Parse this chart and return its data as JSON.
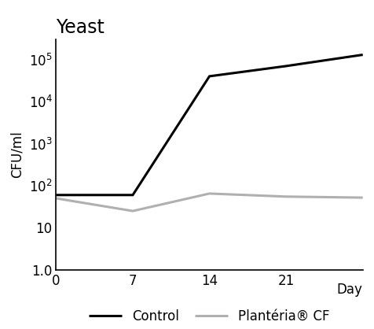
{
  "title": "Yeast",
  "xlabel": "Day",
  "ylabel": "CFU/ml",
  "x_values": [
    0,
    7,
    14,
    21,
    28
  ],
  "control_y": [
    60,
    60,
    40000,
    70000,
    130000
  ],
  "planteria_y": [
    50,
    25,
    65,
    55,
    52
  ],
  "control_color": "#000000",
  "planteria_color": "#b0b0b0",
  "control_label": "Control",
  "planteria_label": "Plantéria® CF",
  "ylim": [
    1.0,
    300000
  ],
  "xlim": [
    0,
    28
  ],
  "x_ticks": [
    0,
    7,
    14,
    21
  ],
  "x_tick_labels": [
    "0",
    "7",
    "14",
    "21"
  ],
  "linewidth": 2.2,
  "background_color": "#ffffff",
  "title_fontsize": 17,
  "label_fontsize": 12,
  "tick_fontsize": 12,
  "legend_fontsize": 12
}
